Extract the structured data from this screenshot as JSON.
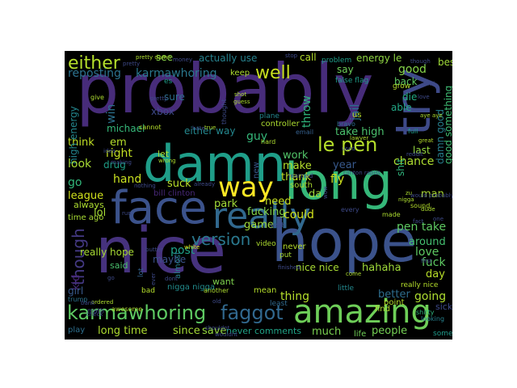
{
  "background": "#000000",
  "words": [
    {
      "text": "probably",
      "color": "#472c7a"
    },
    {
      "text": "nice",
      "color": "#46327e"
    },
    {
      "text": "hope",
      "color": "#3b528b"
    },
    {
      "text": "long",
      "color": "#35b779"
    },
    {
      "text": "damn",
      "color": "#1f9e89"
    },
    {
      "text": "face",
      "color": "#3b528b"
    },
    {
      "text": "amazing",
      "color": "#6ece58"
    },
    {
      "text": "really",
      "color": "#31688e"
    },
    {
      "text": "way",
      "color": "#fde725"
    },
    {
      "text": "karmawhoring",
      "color": "#5ec962"
    },
    {
      "text": "faggot",
      "color": "#31688e"
    },
    {
      "text": "version",
      "color": "#2a788e"
    },
    {
      "text": "either",
      "color": "#b5de2b"
    },
    {
      "text": "well",
      "color": "#c8e020"
    },
    {
      "text": "le pen",
      "color": "#b5de2b"
    },
    {
      "text": "though",
      "color": "#443983"
    },
    {
      "text": "try",
      "color": "#3e4a89"
    },
    {
      "text": "reposting",
      "color": "#2c728e"
    },
    {
      "text": "karmawhoring",
      "color": "#2a788e"
    },
    {
      "text": "actually use",
      "color": "#26828e"
    },
    {
      "text": "energy le",
      "color": "#90d743"
    },
    {
      "text": "best",
      "color": "#a0da39"
    },
    {
      "text": "call",
      "color": "#b5de2b"
    },
    {
      "text": "see",
      "color": "#89d548"
    },
    {
      "text": "say",
      "color": "#6ece58"
    },
    {
      "text": "good",
      "color": "#86d549"
    },
    {
      "text": "back",
      "color": "#5ec962"
    },
    {
      "text": "throw",
      "color": "#2fb47c"
    },
    {
      "text": "die",
      "color": "#25ab82"
    },
    {
      "text": "able",
      "color": "#22a785"
    },
    {
      "text": "jail",
      "color": "#2c728e"
    },
    {
      "text": "xbox",
      "color": "#3e4989"
    },
    {
      "text": "sure",
      "color": "#2e6e8e"
    },
    {
      "text": "win",
      "color": "#2c728e"
    },
    {
      "text": "michael",
      "color": "#35b779"
    },
    {
      "text": "either way",
      "color": "#24878e"
    },
    {
      "text": "take high",
      "color": "#4ac16d"
    },
    {
      "text": "good something",
      "color": "#3fbc73"
    },
    {
      "text": "damn good",
      "color": "#277f8e"
    },
    {
      "text": "think",
      "color": "#c0df25"
    },
    {
      "text": "em",
      "color": "#b5de2b"
    },
    {
      "text": "high energy",
      "color": "#24868e"
    },
    {
      "text": "right",
      "color": "#c2df23"
    },
    {
      "text": "look",
      "color": "#a8db34"
    },
    {
      "text": "drug",
      "color": "#1f9f88"
    },
    {
      "text": "go",
      "color": "#32b67a"
    },
    {
      "text": "hand",
      "color": "#c8e020"
    },
    {
      "text": "suck",
      "color": "#b8de29"
    },
    {
      "text": "league",
      "color": "#d0e11c"
    },
    {
      "text": "lol",
      "color": "#a5db36"
    },
    {
      "text": "maybe",
      "color": "#3b528b"
    },
    {
      "text": "post",
      "color": "#1fa088"
    },
    {
      "text": "park",
      "color": "#a2da37"
    },
    {
      "text": "guy",
      "color": "#35b779"
    },
    {
      "text": "work",
      "color": "#52c569"
    },
    {
      "text": "make",
      "color": "#b5de2b"
    },
    {
      "text": "last",
      "color": "#95d840"
    },
    {
      "text": "chance",
      "color": "#addc30"
    },
    {
      "text": "shit",
      "color": "#2fb47c"
    },
    {
      "text": "thank",
      "color": "#bddf26"
    },
    {
      "text": "fly",
      "color": "#d0e11c"
    },
    {
      "text": "year",
      "color": "#38598c"
    },
    {
      "text": "need",
      "color": "#c5e021"
    },
    {
      "text": "game",
      "color": "#a0da39"
    },
    {
      "text": "fucking",
      "color": "#84d44b"
    },
    {
      "text": "could",
      "color": "#d2e21b"
    },
    {
      "text": "da",
      "color": "#9dd93b"
    },
    {
      "text": "man",
      "color": "#addc30"
    },
    {
      "text": "pen take",
      "color": "#5ec962"
    },
    {
      "text": "around",
      "color": "#44bf70"
    },
    {
      "text": "love",
      "color": "#5ec962"
    },
    {
      "text": "fuck",
      "color": "#5ec962"
    },
    {
      "text": "day",
      "color": "#b8de29"
    },
    {
      "text": "really hope",
      "color": "#a8db34"
    },
    {
      "text": "nice nice",
      "color": "#a8db34"
    },
    {
      "text": "hahaha",
      "color": "#9fda3a"
    },
    {
      "text": "going",
      "color": "#addc30"
    },
    {
      "text": "thing",
      "color": "#b5de2b"
    },
    {
      "text": "better",
      "color": "#2e6e8e"
    },
    {
      "text": "long time",
      "color": "#addc30"
    },
    {
      "text": "since",
      "color": "#a5db36"
    },
    {
      "text": "save",
      "color": "#95d840"
    },
    {
      "text": "much",
      "color": "#7ad151"
    },
    {
      "text": "never comments",
      "color": "#20a386"
    },
    {
      "text": "people",
      "color": "#75d054"
    },
    {
      "text": "kid",
      "color": "#482475"
    },
    {
      "text": "girl",
      "color": "#38598c"
    },
    {
      "text": "said",
      "color": "#4ac16d"
    },
    {
      "text": "time ago",
      "color": "#a8db34"
    },
    {
      "text": "always",
      "color": "#addc30"
    },
    {
      "text": "bill clinton",
      "color": "#482878"
    },
    {
      "text": "nigga nigga",
      "color": "#228c8d"
    },
    {
      "text": "almost",
      "color": "#26828e"
    },
    {
      "text": "lot",
      "color": "#33628d"
    },
    {
      "text": "want",
      "color": "#7fd34e"
    },
    {
      "text": "mean",
      "color": "#b5de2b"
    },
    {
      "text": "least",
      "color": "#306a8e"
    },
    {
      "text": "point",
      "color": "#b5de2b"
    },
    {
      "text": "find",
      "color": "#addc30"
    },
    {
      "text": "sick",
      "color": "#3e4a89"
    },
    {
      "text": "someone",
      "color": "#1f9a8a"
    },
    {
      "text": "life",
      "color": "#70cf57"
    },
    {
      "text": "play",
      "color": "#2e6f8e"
    },
    {
      "text": "keep",
      "color": "#addc30"
    },
    {
      "text": "plane",
      "color": "#24878e"
    },
    {
      "text": "controller",
      "color": "#addc30"
    },
    {
      "text": "us",
      "color": "#b8de29"
    },
    {
      "text": "grow",
      "color": "#b5de2b"
    },
    {
      "text": "problem",
      "color": "#1f9e89"
    },
    {
      "text": "false flag",
      "color": "#1f9e89"
    },
    {
      "text": "es",
      "color": "#1f9e89"
    },
    {
      "text": "full",
      "color": "#1f9e89"
    },
    {
      "text": "sound",
      "color": "#b5de2b"
    },
    {
      "text": "new",
      "color": "#38598c"
    },
    {
      "text": "let",
      "color": "#addc30"
    },
    {
      "text": "cannot",
      "color": "#b5de2b"
    },
    {
      "text": "email",
      "color": "#35608d"
    },
    {
      "text": "bravo",
      "color": "#2e6e8e"
    },
    {
      "text": "hard",
      "color": "#addc30"
    },
    {
      "text": "south",
      "color": "#addc30"
    },
    {
      "text": "learned",
      "color": "#3e4989"
    },
    {
      "text": "every",
      "color": "#3e4a89"
    },
    {
      "text": "made",
      "color": "#addc30"
    },
    {
      "text": "yeah",
      "color": "#3e4a89"
    },
    {
      "text": "video",
      "color": "#addc30"
    },
    {
      "text": "really nice",
      "color": "#b5de2b"
    },
    {
      "text": "little",
      "color": "#23898e"
    },
    {
      "text": "shitty",
      "color": "#2fb47c"
    },
    {
      "text": "looking",
      "color": "#26828e"
    },
    {
      "text": "never",
      "color": "#b5de2b"
    },
    {
      "text": "put",
      "color": "#a8db34"
    },
    {
      "text": "another",
      "color": "#addc30"
    },
    {
      "text": "trump",
      "color": "#2c728e"
    },
    {
      "text": "math",
      "color": "#3e4a89"
    },
    {
      "text": "awesome",
      "color": "#addc30"
    },
    {
      "text": "bad",
      "color": "#b5de2b"
    },
    {
      "text": "white",
      "color": "#d8e219"
    },
    {
      "text": "butter",
      "color": "#3e4a89"
    },
    {
      "text": "ordered",
      "color": "#addc30"
    },
    {
      "text": "old",
      "color": "#3e4a89"
    },
    {
      "text": "come",
      "color": "#addc30"
    },
    {
      "text": "first",
      "color": "#3e4a89"
    },
    {
      "text": "dude",
      "color": "#addc30"
    },
    {
      "text": "pretty",
      "color": "#3e4a89"
    },
    {
      "text": "pretty damn",
      "color": "#addc30"
    },
    {
      "text": "money",
      "color": "#3e4a89"
    },
    {
      "text": "stop",
      "color": "#3e4a89"
    },
    {
      "text": "though",
      "color": "#3e4a89"
    },
    {
      "text": "give",
      "color": "#addc30"
    },
    {
      "text": "thought",
      "color": "#3e4a89"
    },
    {
      "text": "guess",
      "color": "#addc30"
    },
    {
      "text": "shot",
      "color": "#addc30"
    },
    {
      "text": "aye aye",
      "color": "#addc30"
    },
    {
      "text": "true",
      "color": "#addc30"
    },
    {
      "text": "great",
      "color": "#b5de2b"
    },
    {
      "text": "used",
      "color": "#3e4a89"
    },
    {
      "text": "lawyer",
      "color": "#addc30"
    },
    {
      "text": "reddit",
      "color": "#3e4a89"
    },
    {
      "text": "clinton rapist",
      "color": "#3e4a89"
    },
    {
      "text": "nothing",
      "color": "#3e4a89"
    },
    {
      "text": "already",
      "color": "#3e4a89"
    },
    {
      "text": "making",
      "color": "#3e4a89"
    },
    {
      "text": "wrong",
      "color": "#addc30"
    },
    {
      "text": "hate",
      "color": "#3e4a89"
    },
    {
      "text": "idea",
      "color": "#3e4a89"
    },
    {
      "text": "run",
      "color": "#3e4a89"
    },
    {
      "text": "finished",
      "color": "#3e4a89"
    },
    {
      "text": "go",
      "color": "#3e4a89"
    },
    {
      "text": "zu",
      "color": "#addc30"
    },
    {
      "text": "shouldnt",
      "color": "#3e4a89"
    },
    {
      "text": "ever",
      "color": "#3e4a89"
    },
    {
      "text": "dont",
      "color": "#3e4a89"
    },
    {
      "text": "bank",
      "color": "#3e4a89"
    },
    {
      "text": "check",
      "color": "#3e4a89"
    },
    {
      "text": "wouldnt",
      "color": "#3e4a89"
    },
    {
      "text": "and",
      "color": "#3e4a89"
    },
    {
      "text": "love",
      "color": "#3e4a89"
    },
    {
      "text": "would probably",
      "color": "#3e4a89"
    },
    {
      "text": "nigga",
      "color": "#addc30"
    },
    {
      "text": "fact",
      "color": "#3e4a89"
    },
    {
      "text": "wow",
      "color": "#3e4a89"
    },
    {
      "text": "one",
      "color": "#3e4a89"
    },
    {
      "text": "pretty",
      "color": "#3e4a89"
    }
  ]
}
